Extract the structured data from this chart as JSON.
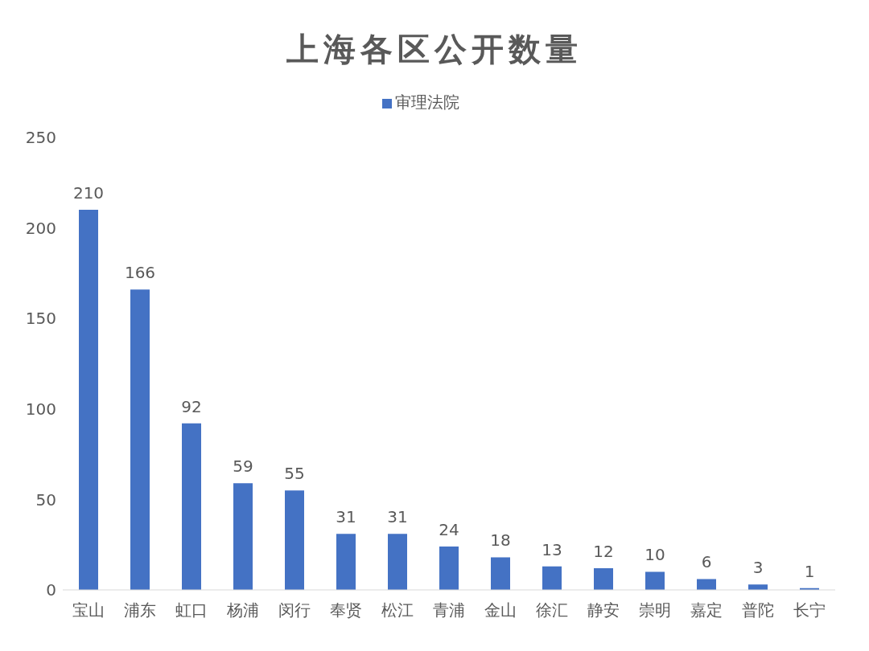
{
  "chart_data": {
    "type": "bar",
    "title": "上海各区公开数量",
    "categories": [
      "宝山",
      "浦东",
      "虹口",
      "杨浦",
      "闵行",
      "奉贤",
      "松江",
      "青浦",
      "金山",
      "徐汇",
      "静安",
      "崇明",
      "嘉定",
      "普陀",
      "长宁"
    ],
    "series": [
      {
        "name": "审理法院",
        "color": "#4472c4",
        "values": [
          210,
          166,
          92,
          59,
          55,
          31,
          31,
          24,
          18,
          13,
          12,
          10,
          6,
          3,
          1
        ]
      }
    ],
    "ylim": [
      0,
      250
    ],
    "yticks": [
      0,
      50,
      100,
      150,
      200,
      250
    ],
    "grid": false,
    "legend": "top",
    "data_labels": true
  }
}
